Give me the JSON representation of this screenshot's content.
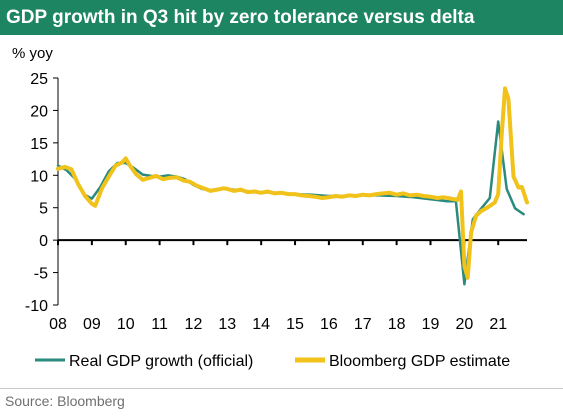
{
  "colors": {
    "title_bg": "#1e8563",
    "official": "#2b8a7e",
    "bloomberg": "#f0c21a"
  },
  "header": {
    "title": "GDP growth in Q3 hit by zero tolerance versus delta"
  },
  "footer": {
    "source": "Source: Bloomberg"
  },
  "chart_data": {
    "type": "line",
    "title": "GDP growth in Q3 hit by zero tolerance versus delta",
    "ylabel": "% yoy",
    "xlabel": "",
    "ylim": [
      -10,
      25
    ],
    "xlim": [
      2008.0,
      2021.85
    ],
    "yticks": [
      "25",
      "20",
      "15",
      "10",
      "5",
      "0",
      "-5",
      "-10"
    ],
    "ytick_values": [
      25,
      20,
      15,
      10,
      5,
      0,
      -5,
      -10
    ],
    "xticks": [
      "08",
      "09",
      "10",
      "11",
      "12",
      "13",
      "14",
      "15",
      "16",
      "17",
      "18",
      "19",
      "20",
      "21"
    ],
    "xtick_values": [
      2008,
      2009,
      2010,
      2011,
      2012,
      2013,
      2014,
      2015,
      2016,
      2017,
      2018,
      2019,
      2020,
      2021
    ],
    "legend_position": "bottom",
    "series": [
      {
        "name": "Real GDP growth (official)",
        "x": [
          2008.0,
          2008.25,
          2008.5,
          2008.75,
          2009.0,
          2009.25,
          2009.5,
          2009.75,
          2010.0,
          2010.25,
          2010.5,
          2010.75,
          2011.0,
          2011.25,
          2011.5,
          2011.75,
          2012.0,
          2012.25,
          2012.5,
          2012.75,
          2013.0,
          2013.5,
          2014.0,
          2014.5,
          2015.0,
          2015.5,
          2016.0,
          2016.5,
          2017.0,
          2017.5,
          2018.0,
          2018.5,
          2019.0,
          2019.5,
          2019.75,
          2020.0,
          2020.25,
          2020.5,
          2020.75,
          2021.0,
          2021.25,
          2021.5,
          2021.75
        ],
        "values": [
          11.5,
          10.8,
          9.5,
          7.1,
          6.4,
          8.2,
          10.6,
          11.9,
          11.9,
          11.1,
          10.1,
          9.9,
          9.8,
          10.0,
          9.8,
          9.4,
          8.5,
          7.9,
          7.7,
          7.9,
          7.9,
          7.6,
          7.4,
          7.3,
          7.1,
          7.0,
          6.8,
          6.8,
          6.9,
          6.9,
          6.8,
          6.6,
          6.3,
          6.0,
          6.0,
          -6.8,
          3.2,
          4.9,
          6.5,
          18.3,
          7.9,
          4.9,
          4.0
        ]
      },
      {
        "name": "Bloomberg GDP estimate",
        "x": [
          2008.0,
          2008.2,
          2008.4,
          2008.6,
          2008.8,
          2009.0,
          2009.1,
          2009.3,
          2009.5,
          2009.7,
          2009.9,
          2010.0,
          2010.1,
          2010.3,
          2010.5,
          2010.7,
          2010.9,
          2011.1,
          2011.3,
          2011.5,
          2011.7,
          2011.9,
          2012.1,
          2012.3,
          2012.5,
          2012.7,
          2012.9,
          2013.0,
          2013.2,
          2013.4,
          2013.6,
          2013.8,
          2014.0,
          2014.2,
          2014.4,
          2014.6,
          2014.8,
          2015.0,
          2015.2,
          2015.4,
          2015.6,
          2015.8,
          2016.0,
          2016.2,
          2016.4,
          2016.6,
          2016.8,
          2017.0,
          2017.2,
          2017.4,
          2017.6,
          2017.8,
          2018.0,
          2018.2,
          2018.4,
          2018.6,
          2018.8,
          2019.0,
          2019.2,
          2019.4,
          2019.6,
          2019.8,
          2019.9,
          2020.0,
          2020.1,
          2020.2,
          2020.35,
          2020.5,
          2020.7,
          2020.9,
          2021.0,
          2021.1,
          2021.2,
          2021.3,
          2021.45,
          2021.6,
          2021.7,
          2021.85
        ],
        "values": [
          11.0,
          11.3,
          10.9,
          8.6,
          6.8,
          5.6,
          5.3,
          8.0,
          9.8,
          11.5,
          12.0,
          12.6,
          11.7,
          10.2,
          9.3,
          9.6,
          9.9,
          9.4,
          9.6,
          9.7,
          9.2,
          9.0,
          8.4,
          8.0,
          7.6,
          7.8,
          8.0,
          7.9,
          7.6,
          7.8,
          7.4,
          7.5,
          7.3,
          7.5,
          7.2,
          7.3,
          7.1,
          7.1,
          6.9,
          6.8,
          6.7,
          6.5,
          6.6,
          6.8,
          6.7,
          6.9,
          6.8,
          7.0,
          6.9,
          7.1,
          7.2,
          7.3,
          7.0,
          7.2,
          6.9,
          7.0,
          6.8,
          6.7,
          6.5,
          6.6,
          6.4,
          6.2,
          7.5,
          -4.0,
          -5.8,
          1.2,
          3.8,
          4.5,
          5.1,
          5.8,
          7.1,
          16.0,
          23.4,
          21.8,
          9.8,
          8.1,
          8.2,
          5.8
        ]
      }
    ]
  }
}
